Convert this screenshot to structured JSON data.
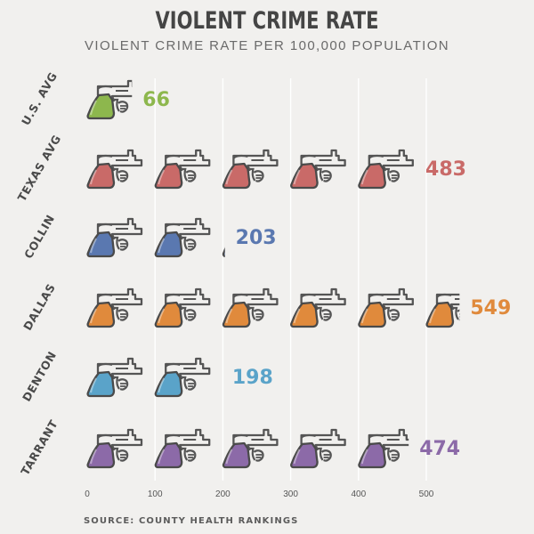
{
  "header": {
    "title": "VIOLENT CRIME RATE",
    "subtitle": "VIOLENT CRIME RATE PER 100,000 POPULATION"
  },
  "footer": {
    "source": "SOURCE: COUNTY HEALTH RANKINGS"
  },
  "chart_data": {
    "type": "bar",
    "orientation": "horizontal",
    "mark": "revolver-icon",
    "units_per_icon": 100,
    "categories": [
      "U.S. AVG",
      "TEXAS AVG",
      "COLLIN",
      "DALLAS",
      "DENTON",
      "TARRANT"
    ],
    "values": [
      66,
      483,
      203,
      549,
      198,
      474
    ],
    "colors": [
      "#8db74d",
      "#c96a68",
      "#5a78b0",
      "#e08a3c",
      "#5aa3c9",
      "#8c6aa8"
    ],
    "xticks": [
      0,
      100,
      200,
      300,
      400,
      500
    ],
    "xlim": [
      0,
      500
    ],
    "grid": true,
    "title": "VIOLENT CRIME RATE",
    "xlabel": "",
    "ylabel": ""
  }
}
